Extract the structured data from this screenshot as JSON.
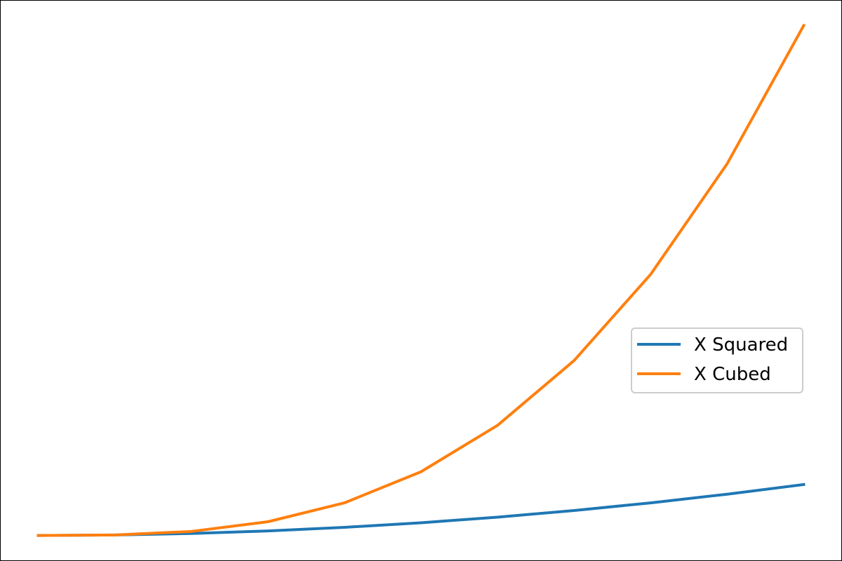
{
  "chart_data": {
    "type": "line",
    "x": [
      0,
      1,
      2,
      3,
      4,
      5,
      6,
      7,
      8,
      9,
      10
    ],
    "series": [
      {
        "name": "X Squared",
        "color": "#1f77b4",
        "values": [
          0,
          1,
          4,
          9,
          16,
          25,
          36,
          49,
          64,
          81,
          100
        ]
      },
      {
        "name": "X Cubed",
        "color": "#ff7f0e",
        "values": [
          0,
          1,
          8,
          27,
          64,
          125,
          216,
          343,
          512,
          729,
          1000
        ]
      }
    ],
    "title": "",
    "xlabel": "",
    "ylabel": "",
    "axes_visible": false,
    "xlim": [
      -0.5,
      10.5
    ],
    "ylim": [
      -50,
      1050
    ],
    "grid": false,
    "legend": {
      "position": "center-right"
    }
  }
}
